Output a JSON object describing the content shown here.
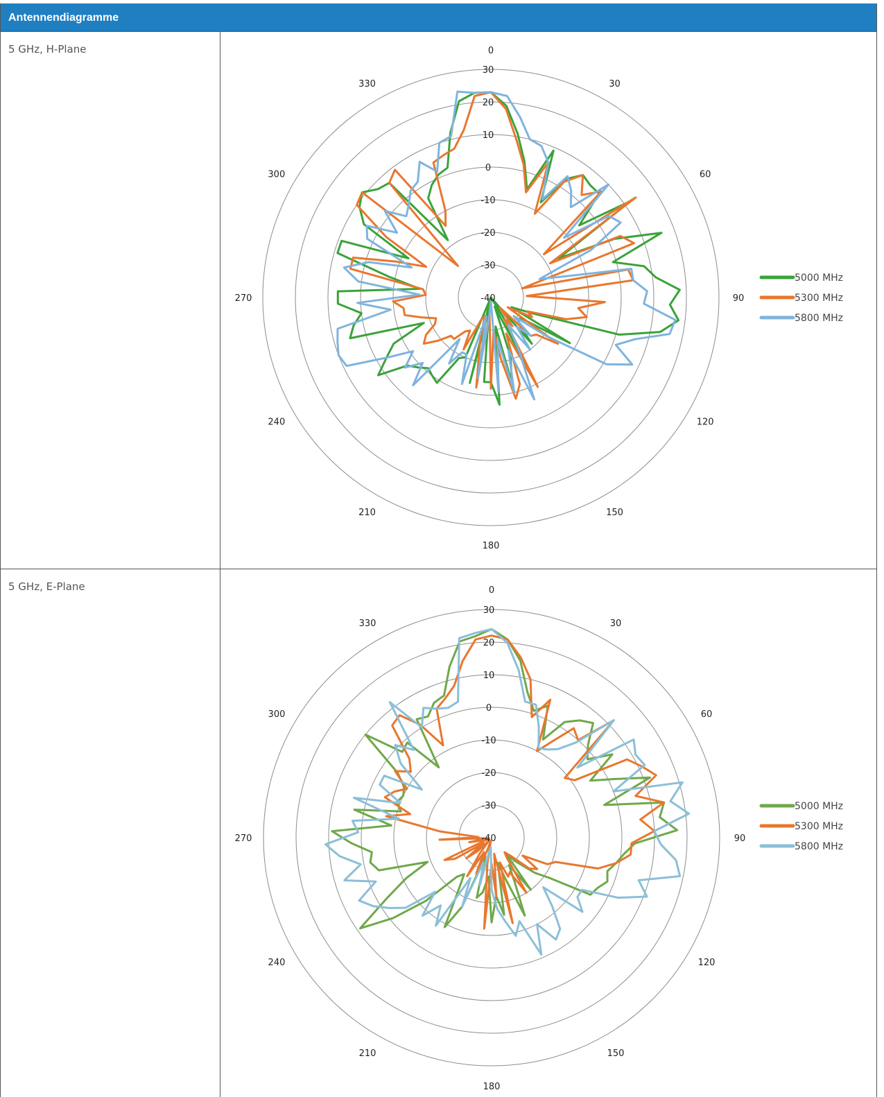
{
  "header": {
    "title": "Antennendiagramme"
  },
  "rows": [
    {
      "label": "5 GHz, H-Plane"
    },
    {
      "label": "5 GHz, E-Plane"
    }
  ],
  "chart_data": [
    {
      "type": "radar",
      "title": "",
      "angle_labels": [
        "0",
        "30",
        "60",
        "90",
        "120",
        "150",
        "180",
        "210",
        "240",
        "270",
        "300",
        "330"
      ],
      "radial_ticks": [
        30,
        20,
        10,
        0,
        -10,
        -20,
        -30,
        -40
      ],
      "rlim": [
        -40,
        30
      ],
      "legend_position": "right",
      "series": [
        {
          "name": "5000 MHz",
          "color": "#3aa33a",
          "values": [
            23,
            19,
            11,
            3,
            -5,
            9,
            -7,
            3,
            7,
            6,
            6,
            -5,
            12,
            -16,
            2,
            16,
            -1,
            8,
            11,
            18,
            15,
            18,
            13,
            1,
            -26,
            -33,
            -12,
            -29,
            -29,
            -28,
            -21,
            -40,
            -33,
            -11,
            -37,
            -21,
            -13,
            -31,
            -7,
            -14,
            -14,
            -36,
            -13,
            -41,
            -20,
            -19,
            -9,
            -10,
            -11,
            -9,
            -7,
            2,
            -3,
            -7,
            -18,
            5,
            3,
            0,
            7,
            7,
            -18,
            -8,
            9,
            9,
            -12,
            5,
            9,
            11,
            8,
            7,
            -18,
            -4,
            -1,
            1,
            2,
            12,
            21,
            23
          ]
        },
        {
          "name": "5300 MHz",
          "color": "#e8772e",
          "values": [
            23,
            18,
            9,
            2,
            -6,
            5,
            -11,
            2,
            7,
            2,
            7,
            -19,
            14,
            -19,
            4,
            7,
            -30,
            3,
            4,
            -29,
            -5,
            -13,
            -10,
            -16,
            -28,
            -26,
            -34,
            -15,
            -22,
            -23,
            -36,
            -29,
            -32,
            -9,
            -28,
            -12,
            -8,
            -21,
            -30,
            -12,
            -35,
            -12,
            -26,
            -34,
            -33,
            -22,
            -28,
            -27,
            -23,
            -23,
            -19,
            -15,
            -17,
            -21,
            -22,
            -18,
            -13,
            -13,
            -10,
            -20,
            -19,
            4,
            4,
            -9,
            -18,
            -3,
            10,
            11,
            -26,
            7,
            9,
            -14,
            -10,
            5,
            6,
            7,
            12,
            22
          ]
        },
        {
          "name": "5800 MHz",
          "color": "#7fb4de",
          "values": [
            23,
            22,
            16,
            10,
            9,
            5,
            -6,
            4,
            1,
            -3,
            10,
            -11,
            4,
            6,
            -6,
            -24,
            -17,
            4,
            4,
            8,
            7,
            17,
            16,
            6,
            1,
            8,
            1,
            -19,
            -31,
            -23,
            -28,
            -20,
            -30,
            -21,
            -6,
            -23,
            -10,
            -27,
            -11,
            -39,
            -34,
            -15,
            -34,
            -12,
            -21,
            -21,
            -16,
            -24,
            -4,
            -11,
            -6,
            -11,
            -3,
            9,
            10,
            9,
            8,
            -9,
            1,
            -18,
            1,
            6,
            -1,
            -14,
            2,
            4,
            -5,
            2,
            -4,
            -2,
            1,
            2,
            7,
            2,
            10,
            11,
            24,
            23
          ]
        }
      ]
    },
    {
      "type": "radar",
      "title": "",
      "angle_labels": [
        "0",
        "30",
        "60",
        "90",
        "120",
        "150",
        "180",
        "210",
        "240",
        "270",
        "300",
        "330"
      ],
      "radial_ticks": [
        30,
        20,
        10,
        0,
        -10,
        -20,
        -30,
        -40
      ],
      "rlim": [
        -40,
        30
      ],
      "legend_position": "right",
      "series": [
        {
          "name": "5000 MHz",
          "color": "#6fa84a",
          "values": [
            24,
            21,
            15,
            6,
            1,
            4,
            -6,
            2,
            5,
            7,
            1,
            -2,
            5,
            -5,
            2,
            12,
            -4,
            14,
            12,
            17,
            4,
            1,
            -1,
            -3,
            -2,
            -4,
            -5,
            -18,
            -23,
            -29,
            -33,
            -20,
            -30,
            -25,
            -14,
            -27,
            -32,
            -16,
            -22,
            -14,
            -28,
            -23,
            -21,
            -34,
            -17,
            -9,
            -21,
            -26,
            -24,
            -12,
            -1,
            9,
            -3,
            -11,
            -19,
            -4,
            -2,
            -3,
            3,
            9,
            -9,
            3,
            -11,
            -9,
            -10,
            -9,
            -5,
            10,
            -2,
            -1,
            -13,
            3,
            2,
            5,
            6,
            14,
            21,
            22
          ]
        },
        {
          "name": "5300 MHz",
          "color": "#e8772e",
          "values": [
            22,
            21,
            16,
            10,
            -1,
            6,
            -10,
            -5,
            2,
            0,
            12,
            -11,
            -9,
            8,
            11,
            14,
            6,
            14,
            6,
            10,
            3,
            3,
            -1,
            -6,
            -19,
            -21,
            -29,
            -23,
            -25,
            -32,
            -34,
            -32,
            -20,
            -28,
            -27,
            -32,
            -13,
            -35,
            -22,
            -32,
            -12,
            -32,
            -39,
            -36,
            -28,
            -35,
            -26,
            -34,
            -39,
            -34,
            -30,
            -37,
            -27,
            -24,
            -39,
            -37,
            -33,
            -39,
            -24,
            -36,
            -24,
            -7,
            -14,
            -5,
            -7,
            -10,
            -4,
            -8,
            -5,
            6,
            7,
            1,
            -8,
            3,
            5,
            8,
            15,
            21
          ]
        },
        {
          "name": "5800 MHz",
          "color": "#8bbfd8",
          "values": [
            24,
            20,
            12,
            3,
            3,
            -3,
            -9,
            -8,
            -6,
            -1,
            12,
            -6,
            13,
            11,
            12,
            0,
            21,
            16,
            21,
            10,
            12,
            17,
            19,
            7,
            11,
            3,
            -8,
            -8,
            -4,
            -18,
            -12,
            -5,
            -3,
            -10,
            -1,
            -13,
            -9,
            -14,
            -18,
            -24,
            -37,
            -36,
            -25,
            -32,
            -17,
            -26,
            -8,
            -14,
            -8,
            -16,
            -6,
            -2,
            2,
            5,
            -2,
            7,
            1,
            7,
            11,
            1,
            3,
            -11,
            4,
            -10,
            -2,
            -2,
            -14,
            -4,
            1,
            -4,
            12,
            0,
            5,
            3,
            2,
            3,
            22,
            23
          ]
        }
      ]
    }
  ]
}
